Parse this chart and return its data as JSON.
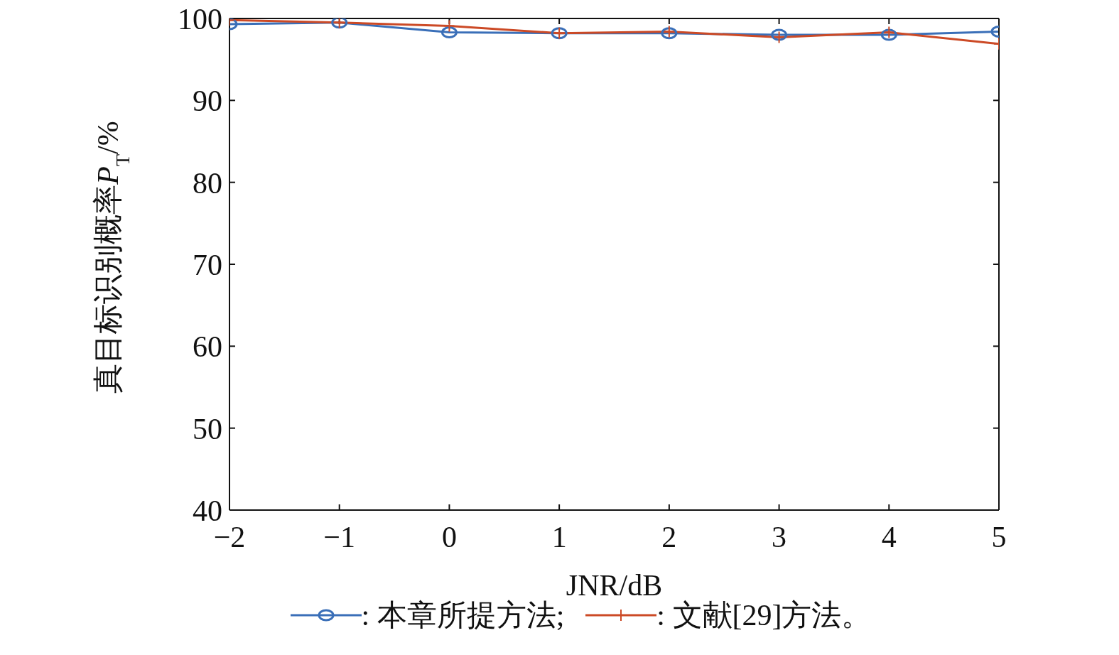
{
  "chart_data": {
    "type": "line",
    "xlabel": "JNR/dB",
    "ylabel": "真目标识别概率P$_{T}$/%",
    "x": [
      -2,
      -1,
      0,
      1,
      2,
      3,
      4,
      5
    ],
    "series": [
      {
        "name": ": 本章所提方法;",
        "color": "#3a6fb8",
        "marker": "circle",
        "values": [
          99.3,
          99.5,
          98.3,
          98.2,
          98.2,
          98.0,
          98.0,
          98.4
        ]
      },
      {
        "name": ": 文献[29]方法。",
        "color": "#cc4a26",
        "marker": "cross",
        "values": [
          99.8,
          99.5,
          99.1,
          98.2,
          98.4,
          97.7,
          98.3,
          96.9
        ]
      }
    ],
    "xlim": [
      -2,
      5
    ],
    "xticks": [
      -2,
      -1,
      0,
      1,
      2,
      3,
      4,
      5
    ],
    "ylim": [
      40,
      100
    ],
    "yticks": [
      40,
      50,
      60,
      70,
      80,
      90,
      100
    ],
    "grid": false,
    "legend": "bottom",
    "line_style": "solid"
  }
}
